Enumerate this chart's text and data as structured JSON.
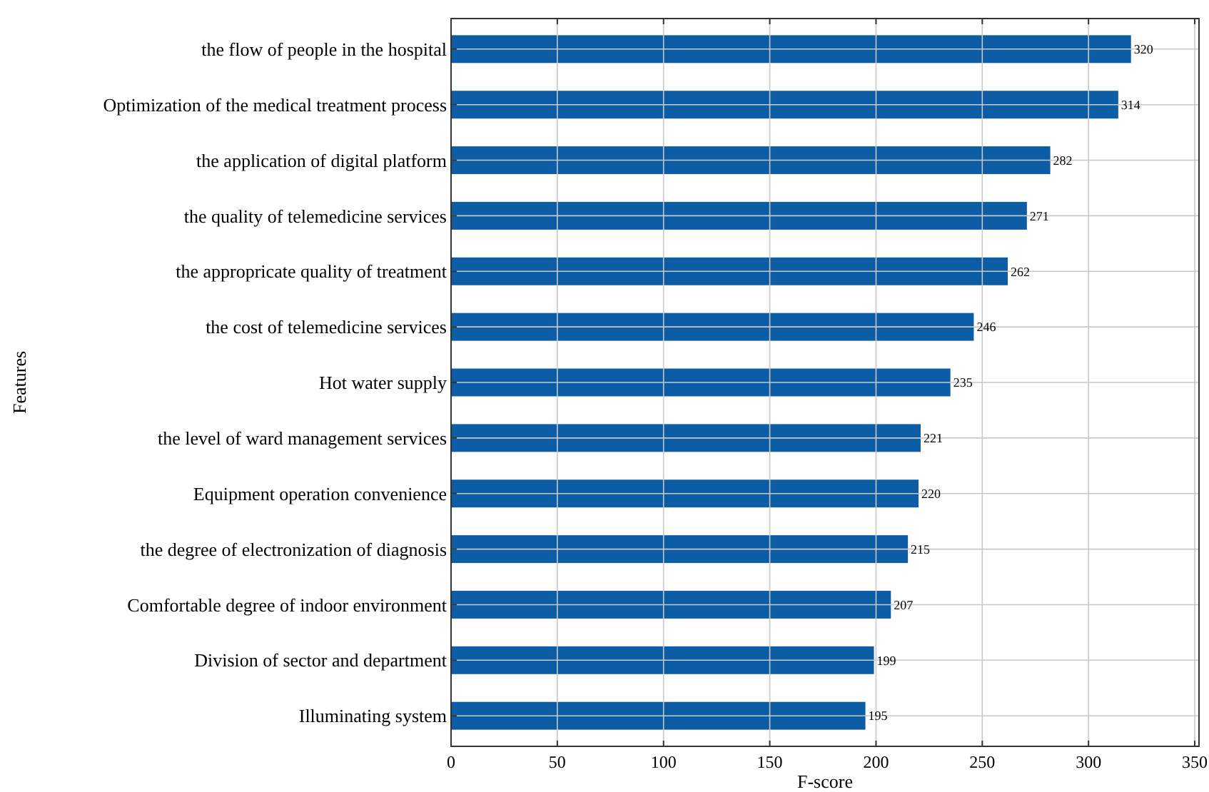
{
  "chart_data": {
    "type": "bar",
    "orientation": "horizontal",
    "xlabel": "F-score",
    "ylabel": "Features",
    "categories": [
      "the flow of people in the hospital",
      "Optimization of the medical treatment process",
      "the application of digital platform",
      "the quality of telemedicine services",
      "the appropricate quality of treatment",
      "the cost of telemedicine services",
      "Hot water supply",
      "the level of ward management services",
      "Equipment operation convenience",
      "the degree of electronization of diagnosis",
      "Comfortable degree of indoor environment",
      "Division of sector and department",
      "Illuminating system"
    ],
    "values": [
      320,
      314,
      282,
      271,
      262,
      246,
      235,
      221,
      220,
      215,
      207,
      199,
      195
    ],
    "color": "#0c5da5",
    "data_labels": true,
    "grid": true,
    "xlim": [
      0,
      352
    ],
    "xticks": [
      0,
      50,
      100,
      150,
      200,
      250,
      300,
      350
    ]
  }
}
